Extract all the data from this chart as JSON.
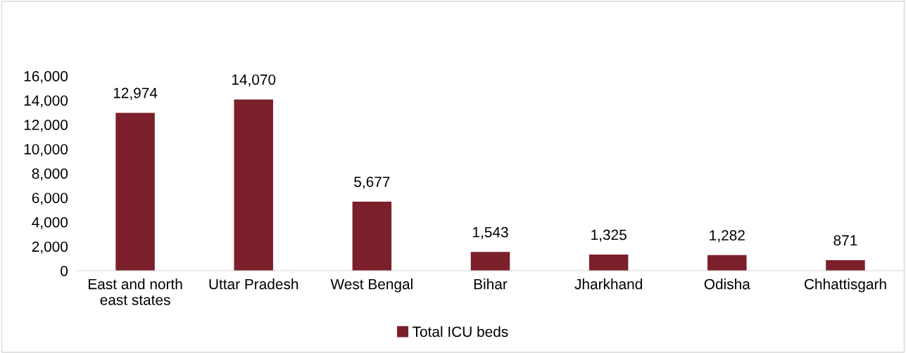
{
  "chart_data": {
    "type": "bar",
    "categories": [
      "East and north\neast states",
      "Uttar Pradesh",
      "West Bengal",
      "Bihar",
      "Jharkhand",
      "Odisha",
      "Chhattisgarh"
    ],
    "series": [
      {
        "name": "Total ICU beds",
        "color": "#7b1f2b",
        "values": [
          12974,
          14070,
          5677,
          1543,
          1325,
          1282,
          871
        ]
      }
    ],
    "ylim": [
      0,
      16000
    ],
    "yticks": [
      {
        "value": 0,
        "label": "0"
      },
      {
        "value": 2000,
        "label": "2,000"
      },
      {
        "value": 4000,
        "label": "4,000"
      },
      {
        "value": 6000,
        "label": "6,000"
      },
      {
        "value": 8000,
        "label": "8,000"
      },
      {
        "value": 10000,
        "label": "10,000"
      },
      {
        "value": 12000,
        "label": "12,000"
      },
      {
        "value": 14000,
        "label": "14,000"
      },
      {
        "value": 16000,
        "label": "16,000"
      }
    ],
    "value_labels": [
      "12,974",
      "14,070",
      "5,677",
      "1,543",
      "1,325",
      "1,282",
      "871"
    ],
    "grid": false,
    "legend": "bottom"
  }
}
